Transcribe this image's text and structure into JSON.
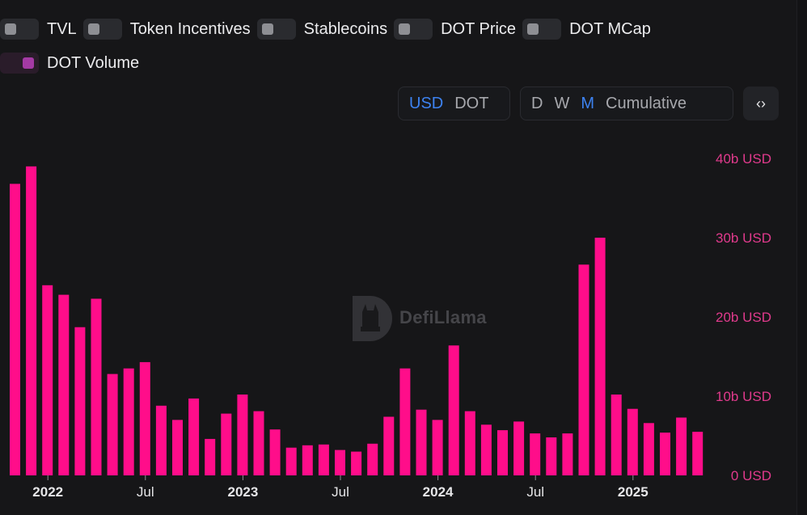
{
  "toggles": [
    {
      "label": "TVL",
      "on": false
    },
    {
      "label": "Token Incentives",
      "on": false
    },
    {
      "label": "Stablecoins",
      "on": false
    },
    {
      "label": "DOT Price",
      "on": false
    },
    {
      "label": "DOT MCap",
      "on": false
    },
    {
      "label": "DOT Volume",
      "on": true,
      "color": "#a43aa4"
    }
  ],
  "currency": {
    "options": [
      "USD",
      "DOT"
    ],
    "selected": "USD"
  },
  "period": {
    "options": [
      "D",
      "W",
      "M",
      "Cumulative"
    ],
    "selected": "M"
  },
  "embed_label": "‹›",
  "watermark": "DefiLlama",
  "colors": {
    "bar": "#ff0d8a",
    "axis_label": "#e03a8c",
    "background": "#161618"
  },
  "chart_data": {
    "type": "bar",
    "series": [
      {
        "name": "DOT Volume",
        "values": [
          36.8,
          39.0,
          24.0,
          22.8,
          18.7,
          22.3,
          12.8,
          13.5,
          14.3,
          8.8,
          7.0,
          9.7,
          4.6,
          7.8,
          10.2,
          8.1,
          5.8,
          3.5,
          3.8,
          3.9,
          3.2,
          3.0,
          4.0,
          7.4,
          13.5,
          8.3,
          7.0,
          16.4,
          8.1,
          6.4,
          5.7,
          6.8,
          5.3,
          4.8,
          5.3,
          26.6,
          30.0,
          10.2,
          8.4,
          6.6,
          5.4,
          7.3,
          5.5
        ]
      }
    ],
    "start_month": "2021-11",
    "interval": "month",
    "x_tick_labels": [
      "2022",
      "Jul",
      "2023",
      "Jul",
      "2024",
      "Jul",
      "2025"
    ],
    "y_tick_labels": [
      "0 USD",
      "10b USD",
      "20b USD",
      "30b USD",
      "40b USD"
    ],
    "y_ticks": [
      0,
      10,
      20,
      30,
      40
    ],
    "ylim": [
      0,
      40
    ],
    "y_unit": "b USD",
    "y_axis_side": "right",
    "grid": false
  }
}
